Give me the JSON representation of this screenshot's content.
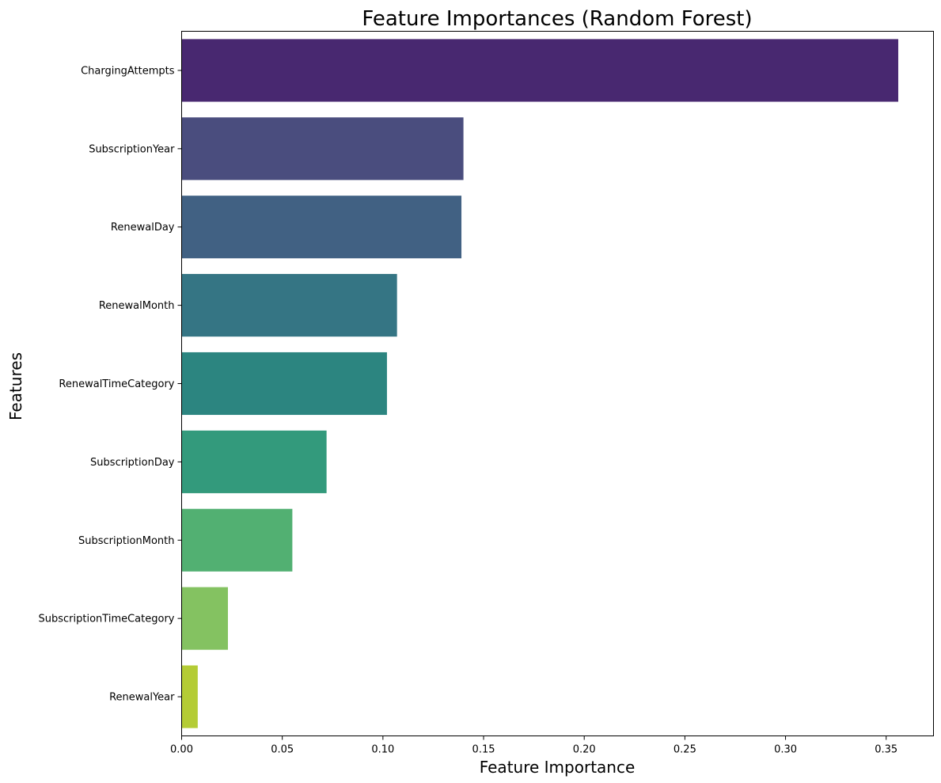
{
  "chart_data": {
    "type": "bar",
    "orientation": "horizontal",
    "title": "Feature Importances (Random Forest)",
    "xlabel": "Feature Importance",
    "ylabel": "Features",
    "categories": [
      "ChargingAttempts",
      "SubscriptionYear",
      "RenewalDay",
      "RenewalMonth",
      "RenewalTimeCategory",
      "SubscriptionDay",
      "SubscriptionMonth",
      "SubscriptionTimeCategory",
      "RenewalYear"
    ],
    "values": [
      0.356,
      0.14,
      0.139,
      0.107,
      0.102,
      0.072,
      0.055,
      0.023,
      0.008
    ],
    "colors": [
      "#482870",
      "#4a4d7e",
      "#416183",
      "#357584",
      "#2c8580",
      "#339a7c",
      "#52b072",
      "#84c261",
      "#b4cc35"
    ],
    "xlim": [
      0,
      0.3735
    ],
    "xticks": [
      0.0,
      0.05,
      0.1,
      0.15,
      0.2,
      0.25,
      0.3,
      0.35
    ],
    "xtick_labels": [
      "0.00",
      "0.05",
      "0.10",
      "0.15",
      "0.20",
      "0.25",
      "0.30",
      "0.35"
    ],
    "grid": false,
    "legend": "none"
  }
}
